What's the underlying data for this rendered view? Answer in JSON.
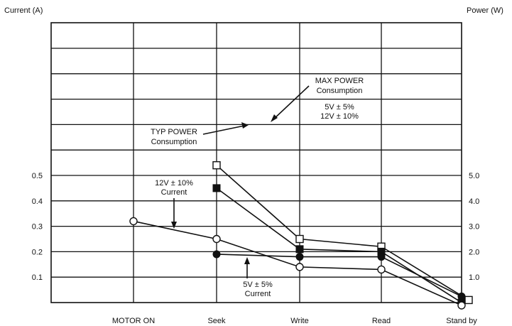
{
  "chart_data": {
    "type": "line",
    "title": "",
    "left_axis": {
      "label": "Current (A)",
      "ticks": [
        "0.1",
        "0.2",
        "0.3",
        "0.4",
        "0.5"
      ],
      "ylim": [
        0,
        0.5
      ]
    },
    "right_axis": {
      "label": "Power (W)",
      "ticks": [
        "1.0",
        "2.0",
        "3.0",
        "4.0",
        "5.0"
      ],
      "ylim": [
        0,
        5.0
      ]
    },
    "categories": [
      "MOTOR ON",
      "Seek",
      "Write",
      "Read",
      "Stand by"
    ],
    "grid": true,
    "series": [
      {
        "axis": "power",
        "marker": "open-square",
        "values": [
          null,
          5.4,
          2.5,
          2.2,
          0.1
        ]
      },
      {
        "axis": "power",
        "marker": "filled-square",
        "values": [
          null,
          4.5,
          2.1,
          2.0,
          0.0
        ]
      },
      {
        "axis": "current",
        "marker": "open-circle",
        "values": [
          0.32,
          0.25,
          0.14,
          0.13,
          0.0
        ]
      },
      {
        "axis": "current",
        "marker": "filled-circle",
        "values": [
          null,
          0.19,
          0.18,
          0.18,
          0.01
        ]
      }
    ],
    "annotations": [
      {
        "id": "max-power",
        "lines": [
          "MAX POWER",
          "Consumption"
        ]
      },
      {
        "id": "supply",
        "lines": [
          "5V ± 5%",
          "12V ± 10%"
        ]
      },
      {
        "id": "typ-power",
        "lines": [
          "TYP POWER",
          "Consumption"
        ]
      },
      {
        "id": "12v-current",
        "lines": [
          "12V ± 10%",
          "Current"
        ]
      },
      {
        "id": "5v-current",
        "lines": [
          "5V ± 5%",
          "Current"
        ]
      }
    ]
  }
}
